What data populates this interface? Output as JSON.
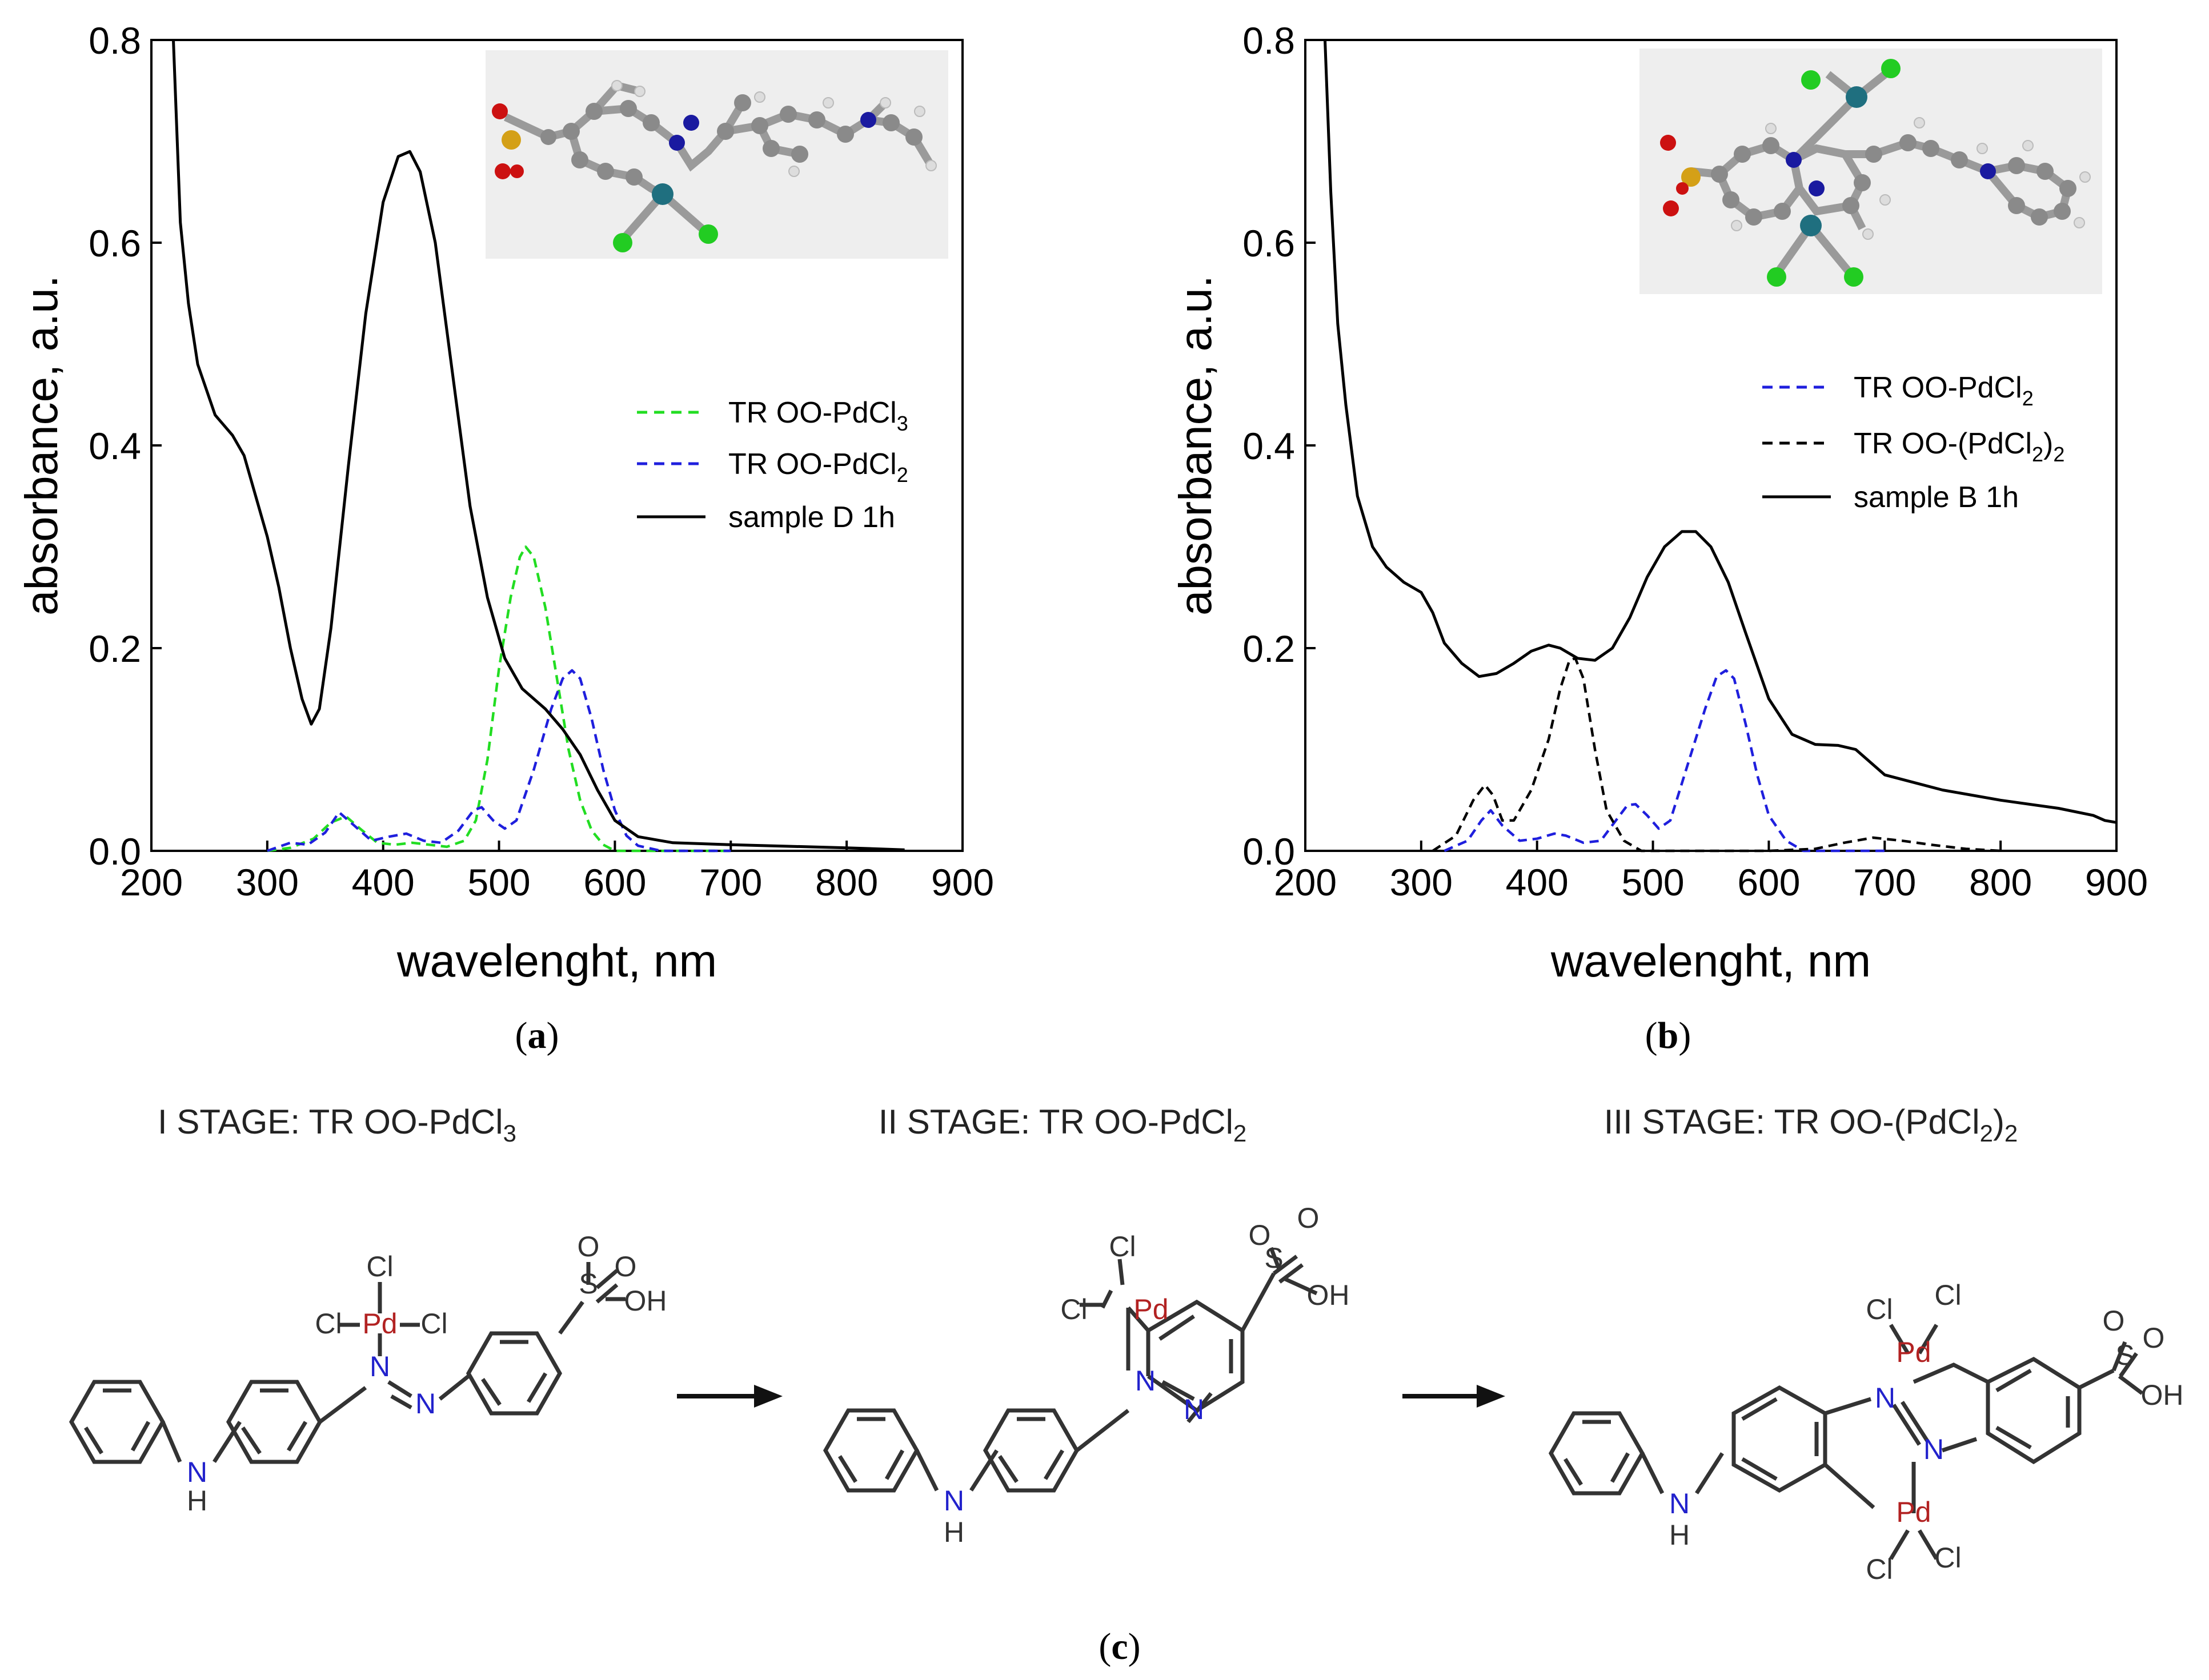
{
  "figure": {
    "panel_a_label": "a",
    "panel_b_label": "b",
    "panel_c_label": "c"
  },
  "chart_data": [
    {
      "id": "a",
      "type": "line",
      "xlabel": "wavelenght, nm",
      "ylabel": "absorbance, a.u.",
      "xlim": [
        200,
        900
      ],
      "ylim": [
        0,
        0.8
      ],
      "xticks": [
        200,
        300,
        400,
        500,
        600,
        700,
        800,
        900
      ],
      "yticks": [
        0.0,
        0.2,
        0.4,
        0.6,
        0.8
      ],
      "grid": false,
      "legend_position": "right-middle",
      "series": [
        {
          "name": "TR OO-PdCl3",
          "legend_main": "TR OO-PdCl",
          "legend_sub": "3",
          "color": "#22dd22",
          "dash": "dashed",
          "x": [
            300,
            320,
            340,
            355,
            368,
            380,
            395,
            410,
            425,
            440,
            455,
            470,
            480,
            490,
            500,
            510,
            518,
            523,
            530,
            540,
            550,
            560,
            570,
            580,
            590,
            600,
            620,
            700
          ],
          "y": [
            0.0,
            0.003,
            0.012,
            0.028,
            0.034,
            0.022,
            0.008,
            0.006,
            0.008,
            0.006,
            0.004,
            0.01,
            0.03,
            0.09,
            0.18,
            0.25,
            0.29,
            0.3,
            0.29,
            0.24,
            0.17,
            0.1,
            0.05,
            0.02,
            0.006,
            0.0,
            0.0,
            0.0
          ]
        },
        {
          "name": "TR OO-PdCl2",
          "legend_main": "TR OO-PdCl",
          "legend_sub": "2",
          "color": "#1f1fdd",
          "dash": "dashed",
          "x": [
            300,
            320,
            335,
            350,
            362,
            375,
            390,
            405,
            420,
            435,
            450,
            465,
            478,
            485,
            495,
            505,
            515,
            530,
            545,
            555,
            563,
            570,
            580,
            590,
            600,
            610,
            620,
            640,
            700
          ],
          "y": [
            0.0,
            0.008,
            0.006,
            0.018,
            0.038,
            0.025,
            0.01,
            0.014,
            0.017,
            0.01,
            0.008,
            0.02,
            0.04,
            0.043,
            0.03,
            0.022,
            0.03,
            0.08,
            0.14,
            0.17,
            0.178,
            0.17,
            0.13,
            0.08,
            0.04,
            0.015,
            0.005,
            0.0,
            0.0
          ]
        },
        {
          "name": "sample D 1h",
          "legend_main": "sample D 1h",
          "legend_sub": "",
          "color": "#000000",
          "dash": "solid",
          "x": [
            219,
            225,
            232,
            240,
            255,
            270,
            280,
            290,
            300,
            310,
            320,
            330,
            338,
            345,
            355,
            370,
            385,
            400,
            413,
            423,
            432,
            445,
            460,
            475,
            490,
            505,
            520,
            540,
            555,
            570,
            585,
            600,
            620,
            650,
            700,
            800,
            850
          ],
          "y": [
            0.8,
            0.62,
            0.54,
            0.48,
            0.43,
            0.41,
            0.39,
            0.35,
            0.31,
            0.26,
            0.2,
            0.15,
            0.125,
            0.14,
            0.22,
            0.38,
            0.53,
            0.64,
            0.685,
            0.69,
            0.67,
            0.6,
            0.47,
            0.34,
            0.25,
            0.19,
            0.16,
            0.14,
            0.12,
            0.095,
            0.06,
            0.03,
            0.014,
            0.008,
            0.006,
            0.003,
            0.001
          ]
        }
      ]
    },
    {
      "id": "b",
      "type": "line",
      "xlabel": "wavelenght, nm",
      "ylabel": "absorbance, a.u.",
      "xlim": [
        200,
        900
      ],
      "ylim": [
        0,
        0.8
      ],
      "xticks": [
        200,
        300,
        400,
        500,
        600,
        700,
        800,
        900
      ],
      "yticks": [
        0.0,
        0.2,
        0.4,
        0.6,
        0.8
      ],
      "grid": false,
      "legend_position": "right-middle",
      "series": [
        {
          "name": "TR OO-PdCl2",
          "legend_main": "TR OO-PdCl",
          "legend_sub": "2",
          "color": "#1f1fdd",
          "dash": "dashed",
          "x": [
            320,
            340,
            352,
            360,
            370,
            385,
            400,
            415,
            425,
            440,
            455,
            468,
            478,
            485,
            495,
            505,
            515,
            530,
            545,
            555,
            563,
            570,
            580,
            590,
            600,
            615,
            630,
            650,
            700
          ],
          "y": [
            0.0,
            0.01,
            0.03,
            0.04,
            0.025,
            0.01,
            0.012,
            0.017,
            0.015,
            0.008,
            0.01,
            0.03,
            0.045,
            0.046,
            0.035,
            0.022,
            0.03,
            0.085,
            0.14,
            0.172,
            0.178,
            0.17,
            0.125,
            0.075,
            0.035,
            0.01,
            0.0,
            0.0,
            0.0
          ]
        },
        {
          "name": "TR OO-(PdCl2)2",
          "legend_main": "TR OO-(PdCl",
          "legend_sub": "2",
          "legend_tail": ")",
          "legend_sub2": "2",
          "color": "#000000",
          "dash": "dashed",
          "x": [
            310,
            330,
            345,
            355,
            362,
            370,
            380,
            395,
            410,
            420,
            428,
            433,
            440,
            450,
            460,
            475,
            490,
            520,
            560,
            600,
            640,
            665,
            690,
            715,
            740,
            770,
            800
          ],
          "y": [
            0.0,
            0.015,
            0.05,
            0.065,
            0.055,
            0.03,
            0.03,
            0.06,
            0.11,
            0.16,
            0.188,
            0.19,
            0.17,
            0.1,
            0.04,
            0.01,
            0.0,
            0.0,
            0.0,
            0.0,
            0.002,
            0.008,
            0.013,
            0.01,
            0.006,
            0.002,
            0.0
          ]
        },
        {
          "name": "sample B 1h",
          "legend_main": "sample B 1h",
          "legend_sub": "",
          "color": "#000000",
          "dash": "solid",
          "x": [
            217,
            222,
            228,
            235,
            245,
            258,
            270,
            285,
            300,
            310,
            320,
            335,
            350,
            365,
            380,
            395,
            410,
            420,
            435,
            450,
            465,
            480,
            495,
            510,
            525,
            537,
            550,
            565,
            580,
            600,
            620,
            640,
            660,
            675,
            700,
            750,
            800,
            850,
            880,
            890,
            900
          ],
          "y": [
            0.8,
            0.65,
            0.52,
            0.44,
            0.35,
            0.3,
            0.28,
            0.265,
            0.255,
            0.235,
            0.205,
            0.185,
            0.172,
            0.175,
            0.185,
            0.197,
            0.203,
            0.2,
            0.19,
            0.188,
            0.2,
            0.23,
            0.27,
            0.3,
            0.315,
            0.315,
            0.3,
            0.265,
            0.215,
            0.15,
            0.115,
            0.105,
            0.104,
            0.1,
            0.075,
            0.06,
            0.05,
            0.042,
            0.035,
            0.03,
            0.028
          ]
        }
      ]
    }
  ],
  "schemes": {
    "stage1_title": "I STAGE: TR OO-PdCl",
    "stage1_sub": "3",
    "stage2_title": "II STAGE: TR OO-PdCl",
    "stage2_sub": "2",
    "stage3_title_main": "III STAGE: TR OO-(PdCl",
    "stage3_sub": "2",
    "stage3_tail": ")",
    "stage3_sub2": "2",
    "atom_cl": "Cl",
    "atom_pd": "Pd",
    "atom_n": "N",
    "atom_h": "H",
    "atom_s": "S",
    "atom_o": "O",
    "atom_oh": "OH",
    "colors": {
      "pd": "#b22222",
      "n": "#2222cc",
      "bond": "#333333"
    }
  }
}
